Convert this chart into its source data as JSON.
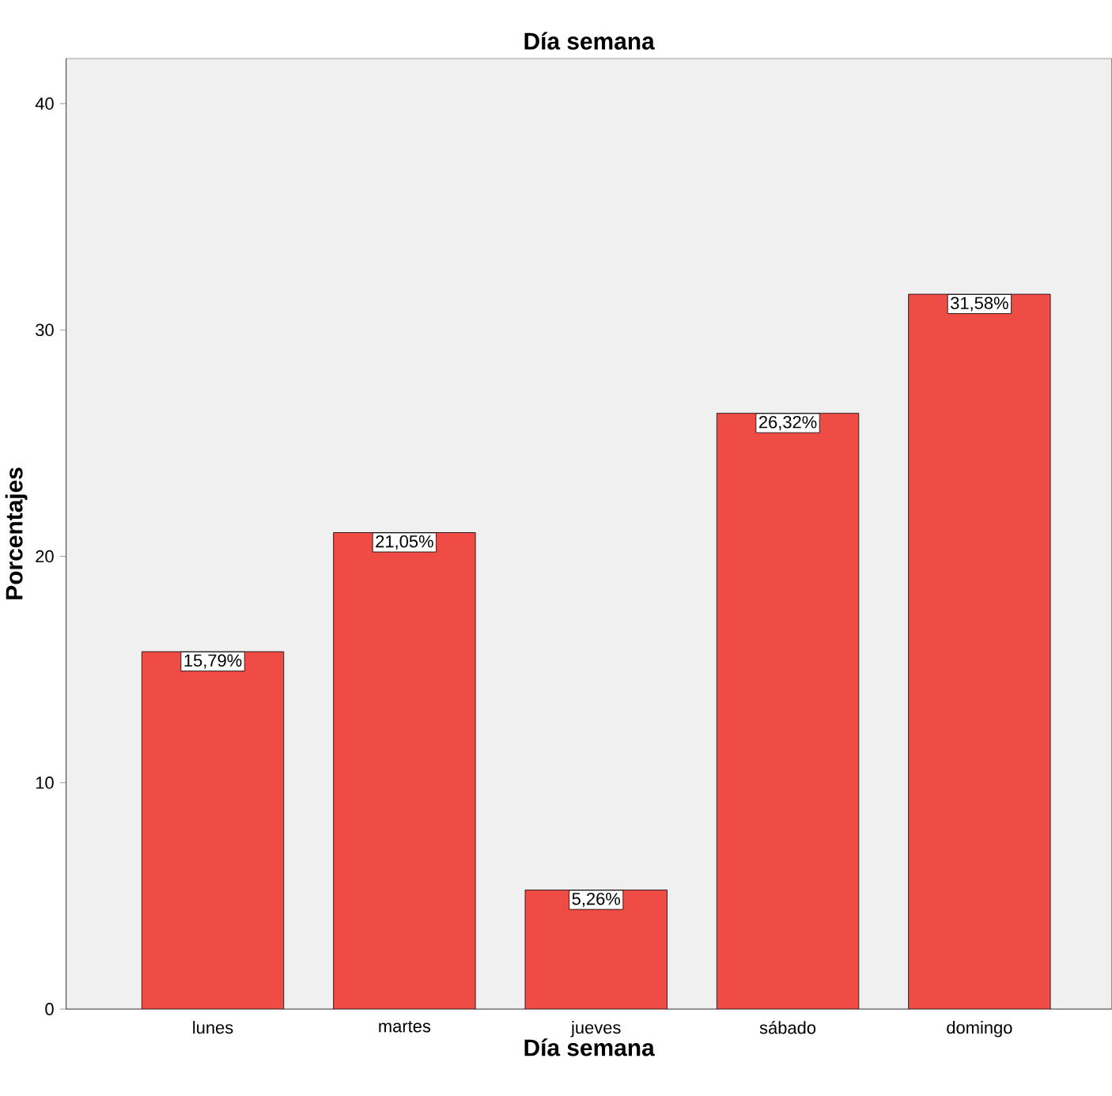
{
  "chart_data": {
    "type": "bar",
    "title": "Día semana",
    "xlabel": "Día semana",
    "ylabel": "Porcentajes",
    "categories": [
      "lunes",
      "martes",
      "jueves",
      "sábado",
      "domingo"
    ],
    "values": [
      15.79,
      21.05,
      5.26,
      26.32,
      31.58
    ],
    "value_labels": [
      "15,79%",
      "21,05%",
      "5,26%",
      "26,32%",
      "31,58%"
    ],
    "color": "#f04c46",
    "ylim": [
      0,
      42
    ],
    "yticks": [
      0,
      10,
      20,
      30,
      40
    ]
  }
}
